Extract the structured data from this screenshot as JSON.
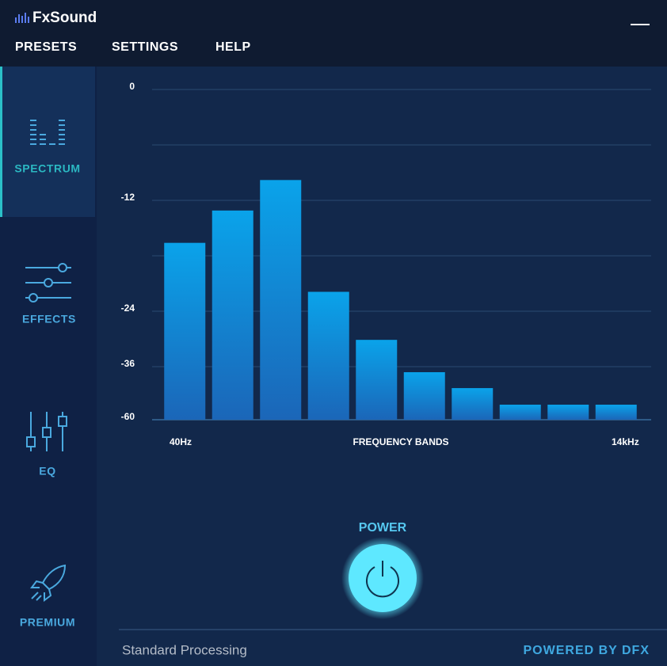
{
  "app": {
    "title": "FxSound"
  },
  "menu": [
    "PRESETS",
    "SETTINGS",
    "HELP"
  ],
  "tabs": [
    "SPECTRUM",
    "EFFECTS",
    "EQ",
    "PREMIUM"
  ],
  "chart_data": {
    "type": "bar",
    "x_label": "FREQUENCY BANDS",
    "categories": [
      "40Hz",
      null,
      null,
      null,
      null,
      null,
      null,
      null,
      null,
      "14kHz"
    ],
    "values": [
      -16.6,
      -13.1,
      -9.8,
      -21.9,
      -30.2,
      -38.5,
      -45.7,
      -53.2,
      -53.2,
      -53.2
    ],
    "color": "#0aa3ea",
    "ylim": [
      -60,
      0
    ],
    "yticks": [
      0,
      -12,
      -24,
      -36,
      -60
    ],
    "grid": true
  },
  "power_label": "POWER",
  "status": "Standard Processing",
  "footer": "POWERED BY DFX"
}
